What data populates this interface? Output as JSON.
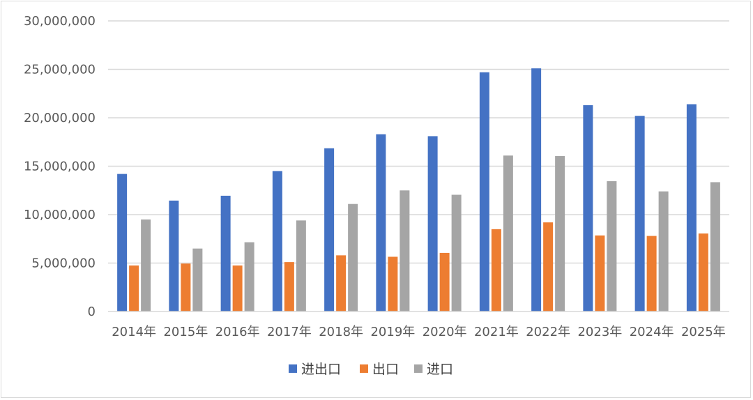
{
  "chart_data": {
    "type": "bar",
    "categories": [
      "2014年",
      "2015年",
      "2016年",
      "2017年",
      "2018年",
      "2019年",
      "2020年",
      "2021年",
      "2022年",
      "2023年",
      "2024年",
      "2025年"
    ],
    "series": [
      {
        "name": "进出口",
        "color": "#4472C4",
        "values": [
          14200000,
          11450000,
          11950000,
          14500000,
          16850000,
          18300000,
          18100000,
          24700000,
          25100000,
          21300000,
          20200000,
          21400000
        ]
      },
      {
        "name": "出口",
        "color": "#ED7D31",
        "values": [
          4750000,
          4950000,
          4750000,
          5100000,
          5800000,
          5650000,
          6050000,
          8500000,
          9200000,
          7850000,
          7800000,
          8050000
        ]
      },
      {
        "name": "进口",
        "color": "#A5A5A5",
        "values": [
          9500000,
          6500000,
          7150000,
          9400000,
          11100000,
          12500000,
          12050000,
          16100000,
          16050000,
          13450000,
          12400000,
          13350000
        ]
      }
    ],
    "ylim": [
      0,
      30000000
    ],
    "y_ticks": [
      "0",
      "5,000,000",
      "10,000,000",
      "15,000,000",
      "20,000,000",
      "25,000,000",
      "30,000,000"
    ],
    "y_tick_values": [
      0,
      5000000,
      10000000,
      15000000,
      20000000,
      25000000,
      30000000
    ],
    "grid": true,
    "legend_position": "bottom"
  }
}
